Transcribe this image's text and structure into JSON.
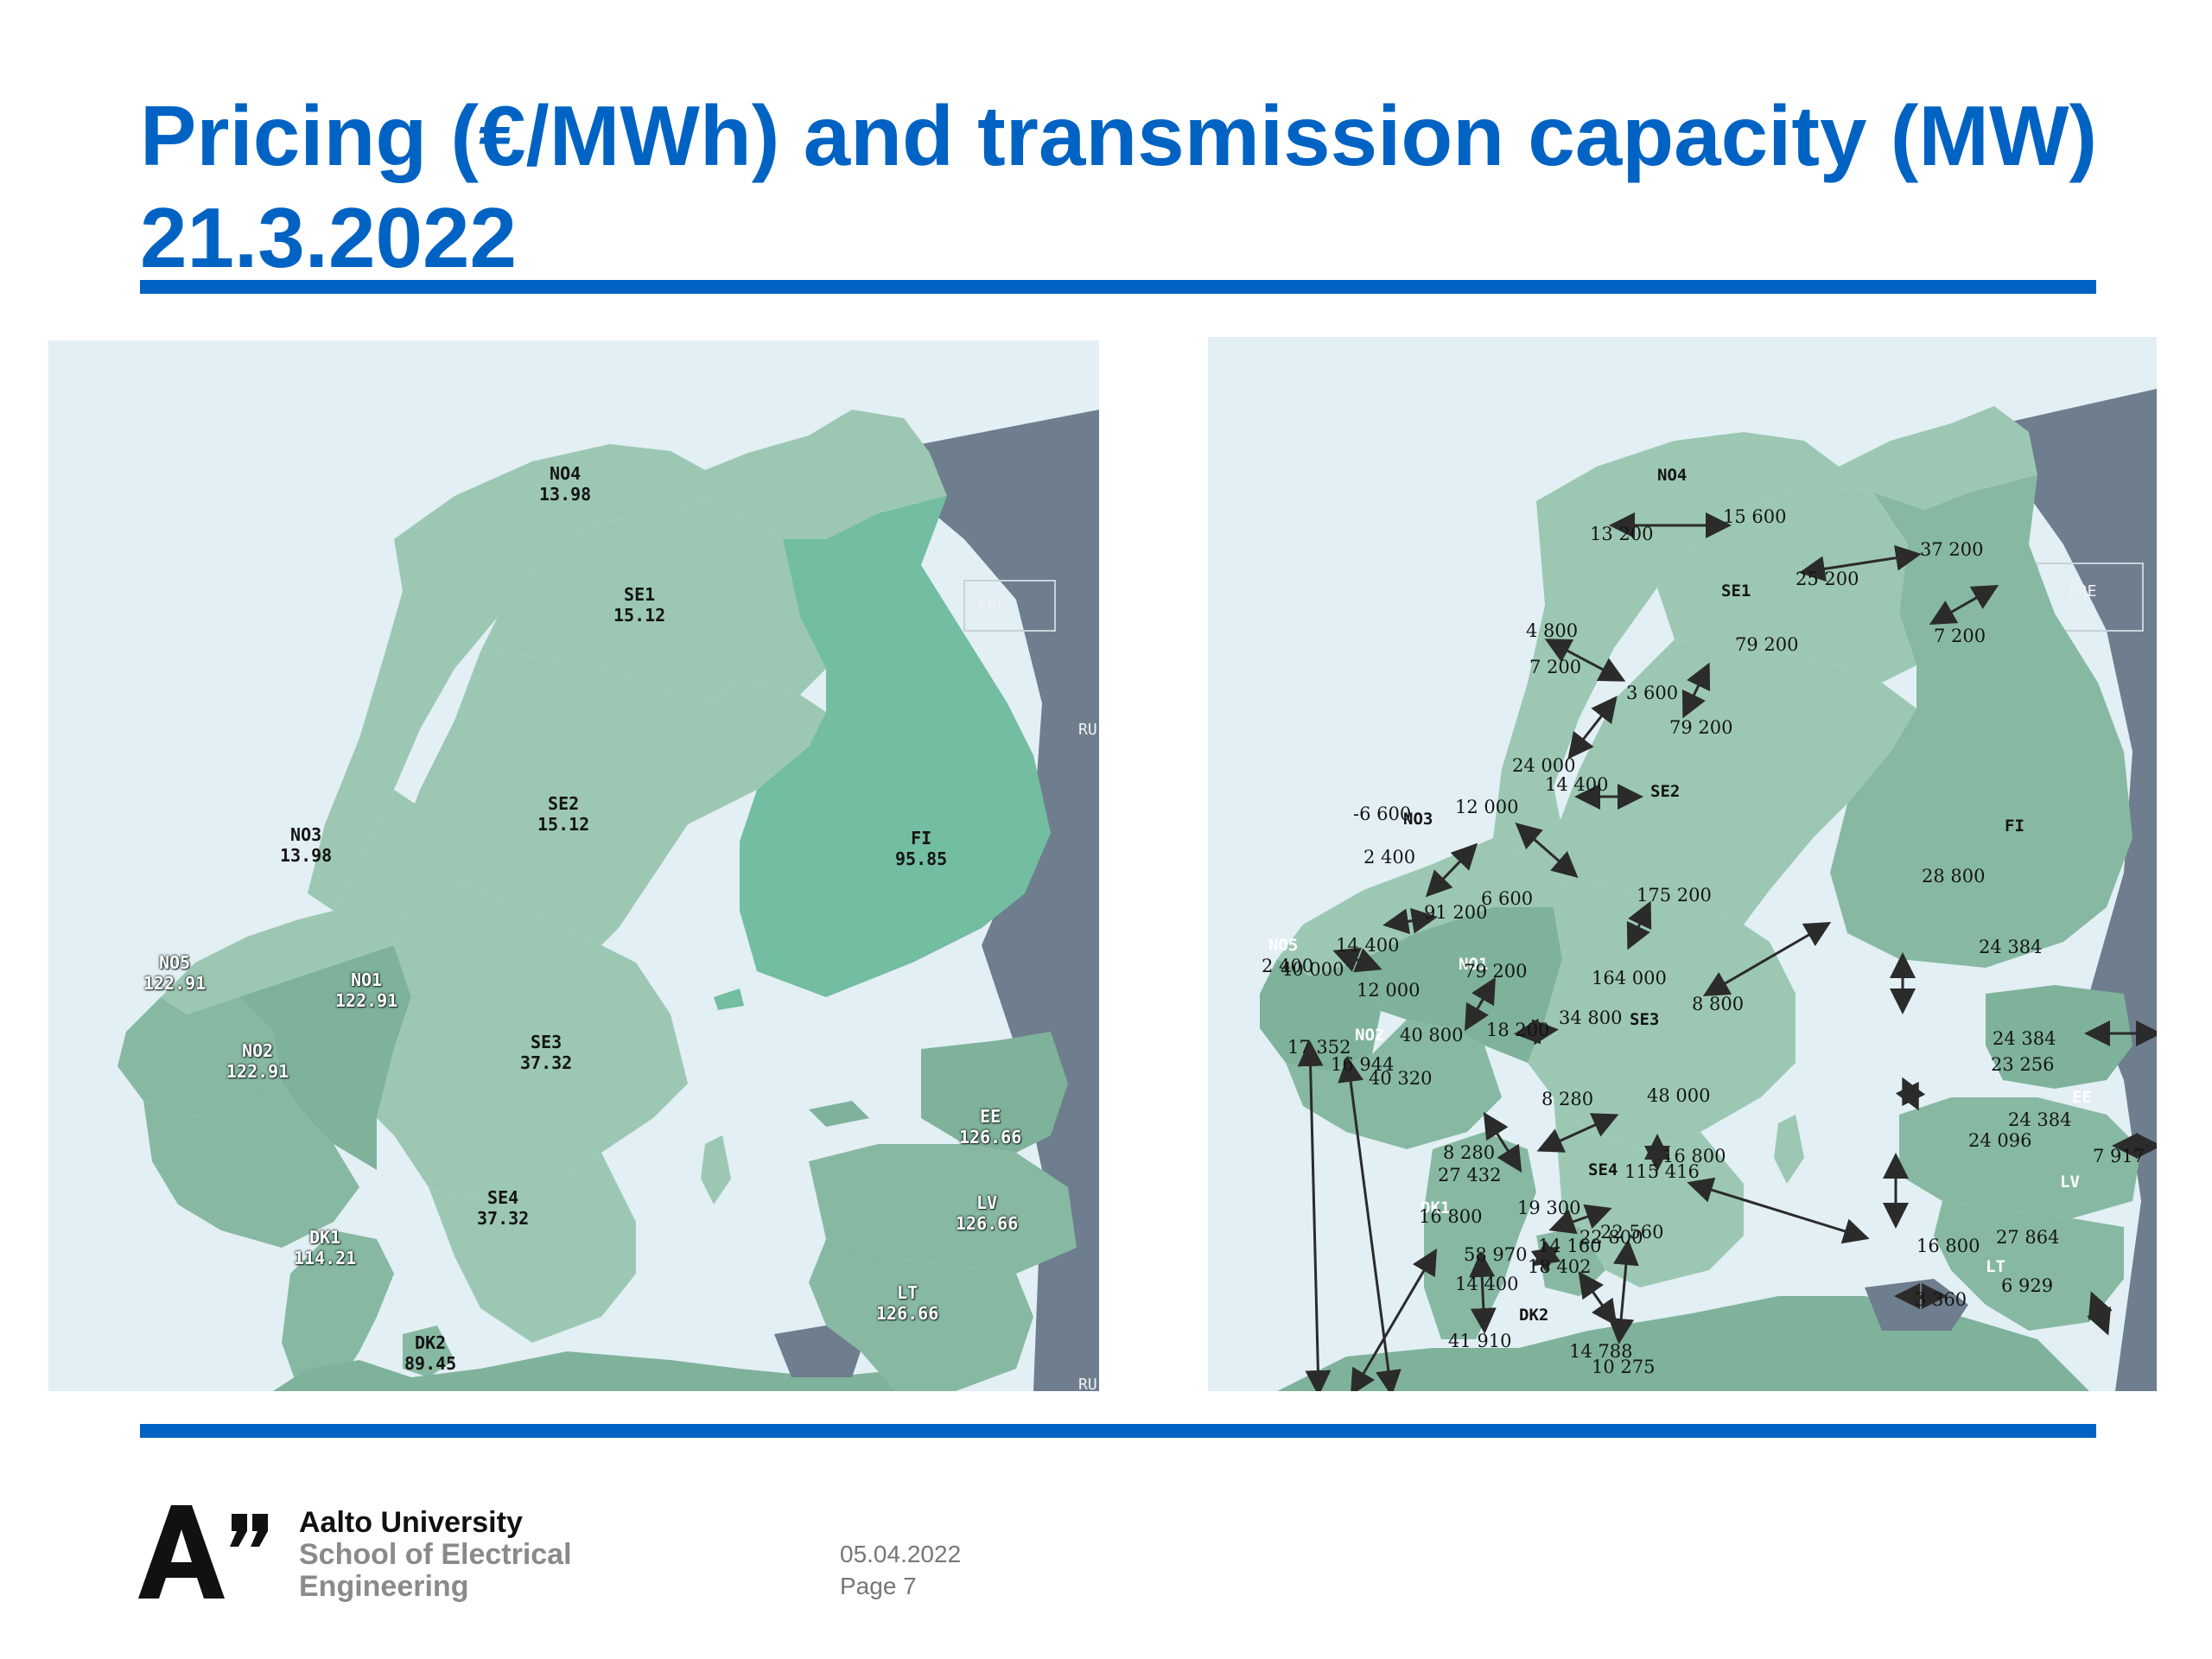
{
  "title": {
    "line1": "Pricing (€/MWh) and transmission capacity (MW)",
    "line2": "21.3.2022"
  },
  "colors": {
    "accent": "#0063c3",
    "sea": "#e2eff4",
    "zone_light": "#9cc8b3",
    "zone_mid": "#87b9a2",
    "zone_dark": "#6fa38b",
    "finland_left": "#73bda0",
    "russia": "#6e7e8e",
    "arrow": "#2b2b2b"
  },
  "price_map": {
    "zones": [
      {
        "code": "NO4",
        "price": "13.98"
      },
      {
        "code": "SE1",
        "price": "15.12"
      },
      {
        "code": "SE2",
        "price": "15.12"
      },
      {
        "code": "NO3",
        "price": "13.98"
      },
      {
        "code": "FI",
        "price": "95.85"
      },
      {
        "code": "NO5",
        "price": "122.91"
      },
      {
        "code": "NO1",
        "price": "122.91"
      },
      {
        "code": "NO2",
        "price": "122.91"
      },
      {
        "code": "SE3",
        "price": "37.32"
      },
      {
        "code": "EE",
        "price": "126.66"
      },
      {
        "code": "SE4",
        "price": "37.32"
      },
      {
        "code": "LV",
        "price": "126.66"
      },
      {
        "code": "DK1",
        "price": "114.21"
      },
      {
        "code": "LT",
        "price": "126.66"
      },
      {
        "code": "DK2",
        "price": "89.45"
      }
    ],
    "region_labels": [
      "FRE",
      "RU",
      "RU"
    ]
  },
  "capacity_map": {
    "zone_labels": [
      "NO4",
      "SE1",
      "FRE",
      "SE2",
      "FI",
      "NO3",
      "NO5",
      "NO1",
      "NO2",
      "SE3",
      "EE",
      "LV",
      "SE4",
      "DK1",
      "DK2",
      "LT"
    ],
    "capacities": [
      "13 200",
      "15 600",
      "25 200",
      "37 200",
      "4 800",
      "7 200",
      "79 200",
      "3 600",
      "7 200",
      "79 200",
      "24 000",
      "14 400",
      "12 000",
      "-6 600",
      "2 400",
      "6 600",
      "175 200",
      "28 800",
      "14 400",
      "91 200",
      "2 400",
      "40 000",
      "79 200",
      "164 000",
      "24 384",
      "12 000",
      "8 800",
      "34 800",
      "40 800",
      "18 200",
      "24 384",
      "23 256",
      "17 352",
      "16 944",
      "40 320",
      "8 280",
      "48 000",
      "24 384",
      "24 096",
      "7 917",
      "8 280",
      "27 432",
      "115 416",
      "16 800",
      "16 800",
      "19 300",
      "22 560",
      "22 800",
      "27 864",
      "16 800",
      "58 970",
      "14 160",
      "18 402",
      "14 400",
      "6 929",
      "3 360",
      "41 910",
      "14 788",
      "10 275"
    ]
  },
  "footer": {
    "university": "Aalto University",
    "school_line1": "School of Electrical",
    "school_line2": "Engineering",
    "date": "05.04.2022",
    "page": "Page 7"
  }
}
